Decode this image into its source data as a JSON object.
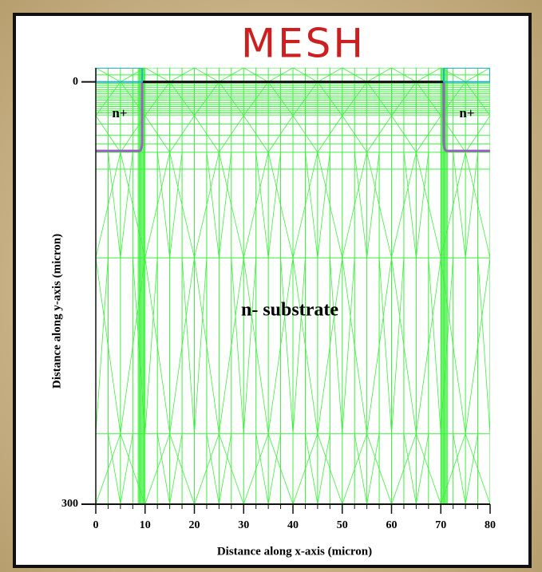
{
  "chart_data": {
    "type": "mesh",
    "title": "MESH",
    "x_label": "Distance along x-axis (micron)",
    "y_label": "Distance along y-axis (micron)",
    "xlim": [
      0,
      80
    ],
    "ylim": [
      300,
      -10
    ],
    "xticks": [
      0,
      10,
      20,
      30,
      40,
      50,
      60,
      70,
      80
    ],
    "yticks": [
      0,
      300
    ],
    "annotations": [
      "n+",
      "n+",
      "n- substrate"
    ]
  }
}
